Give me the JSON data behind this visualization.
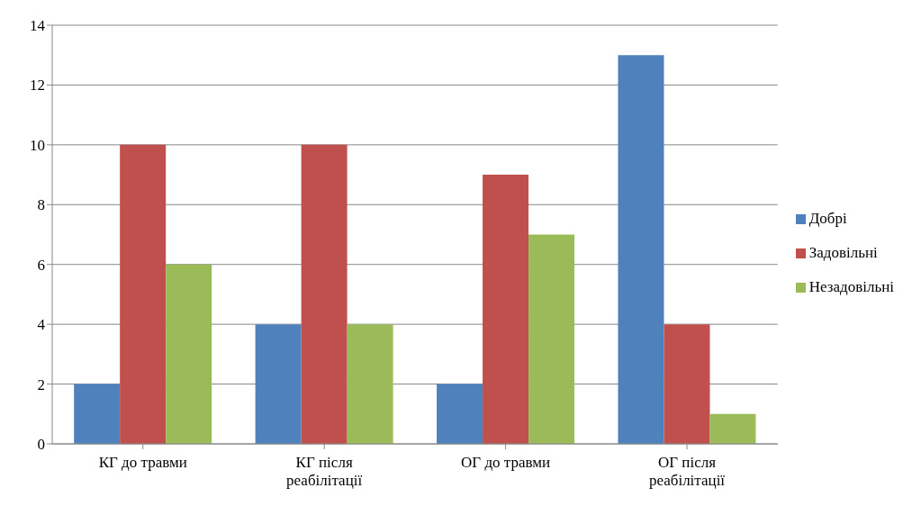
{
  "chart_data": {
    "type": "bar",
    "categories": [
      "КГ до травми",
      "КГ після реабілітації",
      "ОГ до травми",
      "ОГ після реабілітації"
    ],
    "series": [
      {
        "name": "Добрі",
        "color": "#4f81bd",
        "values": [
          2,
          4,
          2,
          13
        ]
      },
      {
        "name": "Задовільні",
        "color": "#c0504d",
        "values": [
          10,
          10,
          9,
          4
        ]
      },
      {
        "name": "Незадовільні",
        "color": "#9bbb59",
        "values": [
          6,
          4,
          7,
          1
        ]
      }
    ],
    "ylim": [
      0,
      14
    ],
    "yticks": [
      0,
      2,
      4,
      6,
      8,
      10,
      12,
      14
    ],
    "grid": "y",
    "legend": "right"
  }
}
